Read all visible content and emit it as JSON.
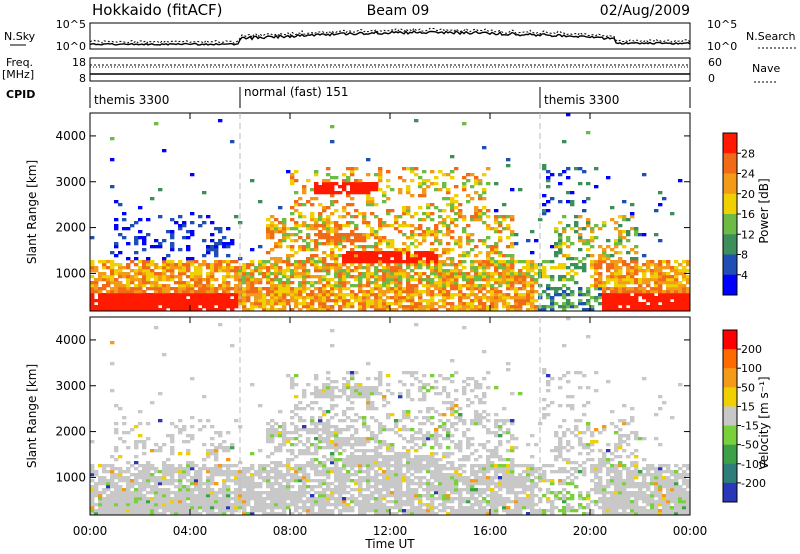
{
  "header": {
    "station": "Hokkaido (fitACF)",
    "beam": "Beam 09",
    "date": "02/Aug/2009"
  },
  "noise_panel": {
    "left_label": "N.Sky",
    "right_label": "N.Search",
    "left_ticks": [
      "10^5",
      "10^0"
    ],
    "right_ticks": [
      "10^5",
      "10^0"
    ]
  },
  "freq_panel": {
    "left_label_1": "Freq.",
    "left_label_2": "[MHz]",
    "right_label": "Nave",
    "left_ticks": [
      "18",
      "8"
    ],
    "right_ticks": [
      "60",
      "0"
    ]
  },
  "cpid": {
    "label": "CPID",
    "segments": [
      {
        "text": "themis 3300",
        "start_h": 0,
        "end_h": 6
      },
      {
        "text": "normal (fast) 151",
        "start_h": 6,
        "end_h": 18
      },
      {
        "text": "themis 3300",
        "start_h": 18,
        "end_h": 24
      }
    ]
  },
  "chart_data": [
    {
      "type": "heatmap",
      "name": "power",
      "ylabel": "Slant Range [km]",
      "yticks": [
        "1000",
        "2000",
        "3000",
        "4000"
      ],
      "ylim": [
        180,
        4500
      ],
      "colorbar_label": "Power [dB]",
      "colorbar_ticks": [
        "4",
        "8",
        "12",
        "16",
        "20",
        "24",
        "28"
      ],
      "colors": [
        "#0000ff",
        "#1f4fb3",
        "#3c8f5a",
        "#6dbb44",
        "#f0d000",
        "#f39a18",
        "#f06a18",
        "#ff1a00"
      ]
    },
    {
      "type": "heatmap",
      "name": "velocity",
      "ylabel": "Slant Range [km]",
      "yticks": [
        "1000",
        "2000",
        "3000",
        "4000"
      ],
      "ylim": [
        180,
        4500
      ],
      "colorbar_label": "Velocity [m s⁻¹]",
      "colorbar_ticks": [
        "200",
        "100",
        "50",
        "15",
        "-15",
        "-50",
        "-100",
        "-200"
      ],
      "colors": [
        "#2838b8",
        "#2f7d7a",
        "#3ca049",
        "#7ad03a",
        "#c8c8c8",
        "#f0d000",
        "#f39a18",
        "#ff6a00",
        "#ff0000"
      ]
    }
  ],
  "xaxis": {
    "label": "Time UT",
    "ticks": [
      "00:00",
      "04:00",
      "08:00",
      "12:00",
      "16:00",
      "20:00",
      "00:00"
    ]
  }
}
